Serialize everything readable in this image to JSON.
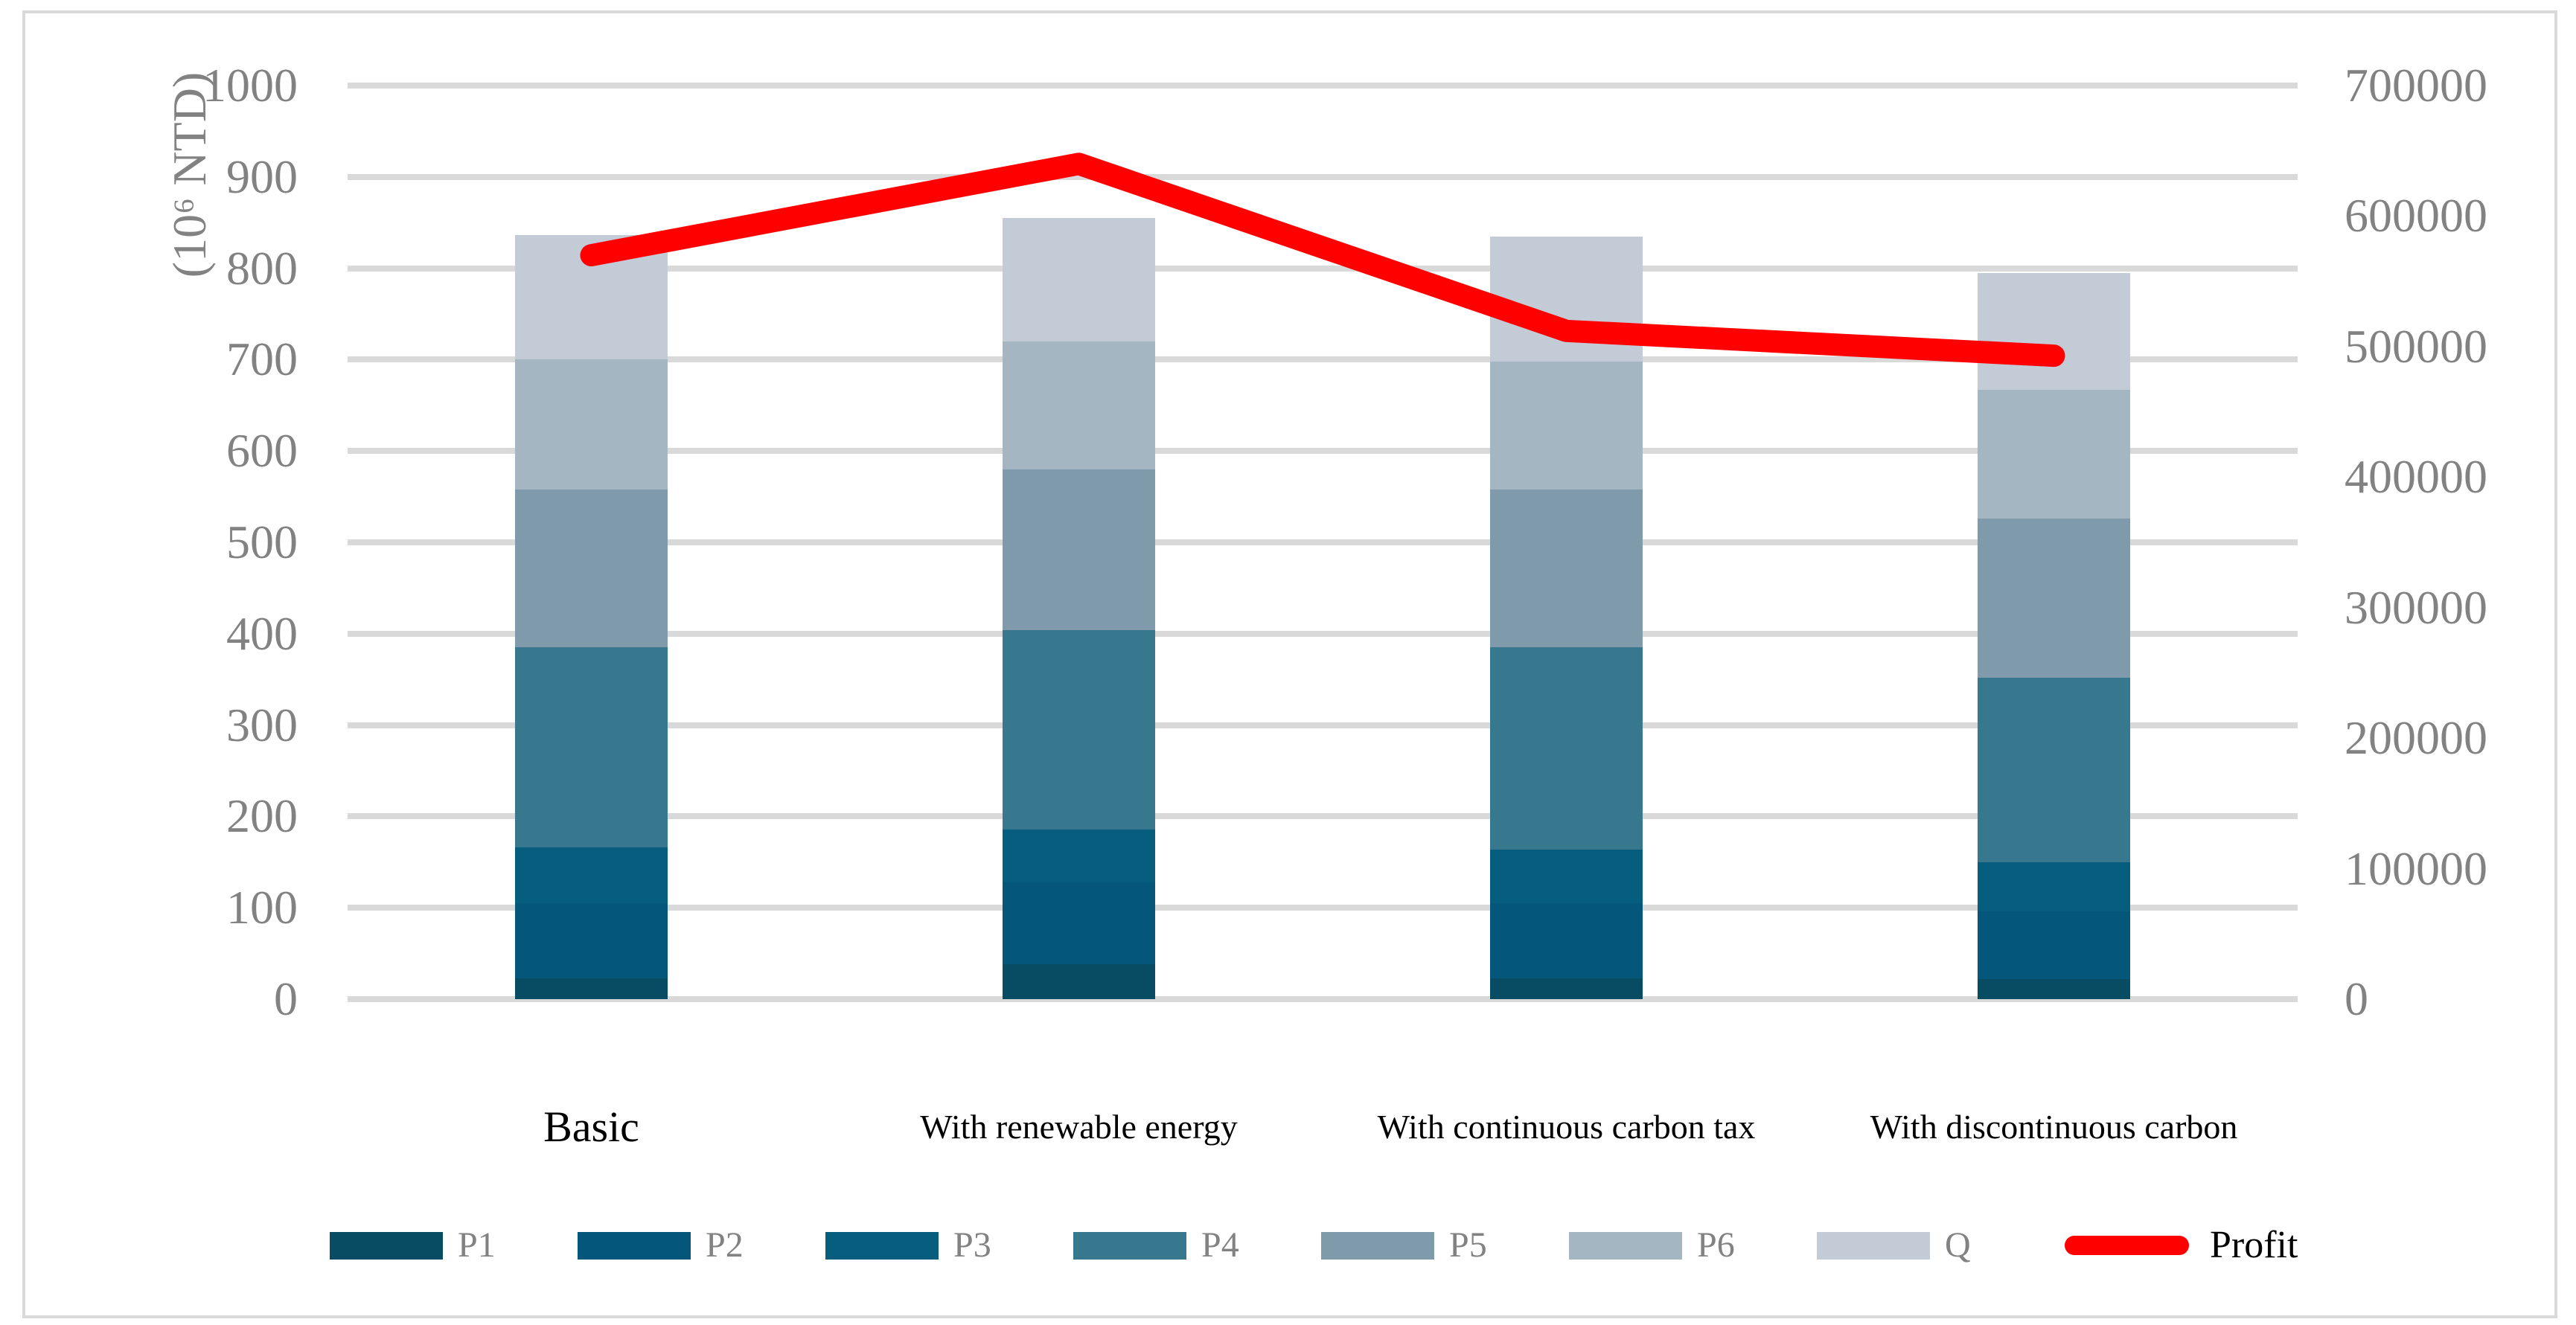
{
  "chart_data": {
    "type": "bar",
    "subtype": "stacked-bar-with-line-combo",
    "categories": [
      "Basic",
      "With renewable energy",
      "With continuous carbon tax",
      "With discontinuous carbon"
    ],
    "series": [
      {
        "name": "P1",
        "color": "#074C63",
        "values": [
          23,
          38,
          23,
          22
        ]
      },
      {
        "name": "P2",
        "color": "#04567A",
        "values": [
          82,
          90,
          82,
          74
        ]
      },
      {
        "name": "P3",
        "color": "#065D7E",
        "values": [
          61,
          58,
          59,
          54
        ]
      },
      {
        "name": "P4",
        "color": "#37788F",
        "values": [
          219,
          218,
          221,
          202
        ]
      },
      {
        "name": "P5",
        "color": "#7F9AAA",
        "values": [
          173,
          176,
          173,
          174
        ]
      },
      {
        "name": "P6",
        "color": "#A3B6C2",
        "values": [
          142,
          140,
          140,
          141
        ]
      },
      {
        "name": "Q",
        "color": "#C3CCD6",
        "values": [
          136,
          135,
          137,
          128
        ]
      }
    ],
    "stack_totals": [
      836,
      855,
      835,
      795
    ],
    "line_series": {
      "name": "Profit",
      "color": "#FF0000",
      "axis": "right",
      "values": [
        570000,
        640000,
        512000,
        493000
      ]
    },
    "left_axis": {
      "title": "(10⁶ NTD)",
      "min": 0,
      "max": 1000,
      "step": 100,
      "ticks": [
        0,
        100,
        200,
        300,
        400,
        500,
        600,
        700,
        800,
        900,
        1000
      ]
    },
    "right_axis": {
      "min": 0,
      "max": 700000,
      "step": 100000,
      "ticks": [
        0,
        100000,
        200000,
        300000,
        400000,
        500000,
        600000,
        700000
      ]
    },
    "grid": true,
    "legend_position": "bottom",
    "styles": {
      "gridline_color": "#D9D9D9",
      "tick_text_color": "#828282",
      "category_text_color": "#000000",
      "profit_label_color": "#000000",
      "background": "#FFFFFF"
    }
  }
}
